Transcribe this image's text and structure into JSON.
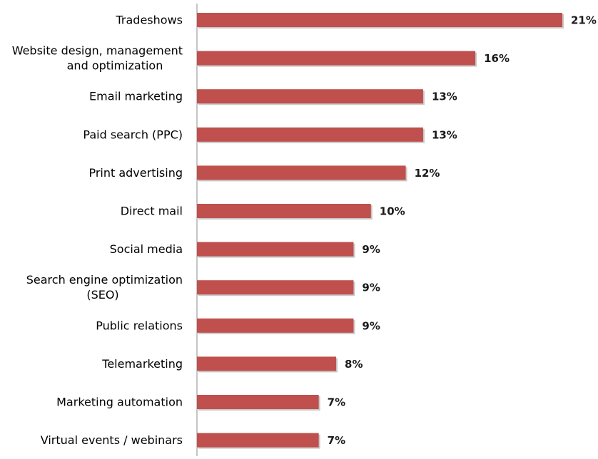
{
  "chart_data": {
    "type": "bar",
    "orientation": "horizontal",
    "categories": [
      [
        "Tradeshows"
      ],
      [
        "Website design, management",
        "and optimization"
      ],
      [
        "Email marketing"
      ],
      [
        "Paid search (PPC)"
      ],
      [
        "Print advertising"
      ],
      [
        "Direct mail"
      ],
      [
        "Social media"
      ],
      [
        "Search engine optimization",
        "(SEO)"
      ],
      [
        "Public relations"
      ],
      [
        "Telemarketing"
      ],
      [
        "Marketing automation"
      ],
      [
        "Virtual events / webinars"
      ]
    ],
    "values": [
      21,
      16,
      13,
      13,
      12,
      10,
      9,
      9,
      9,
      8,
      7,
      7
    ],
    "value_labels": [
      "21%",
      "16%",
      "13%",
      "13%",
      "12%",
      "10%",
      "9%",
      "9%",
      "9%",
      "8%",
      "7%",
      "7%"
    ],
    "title": "",
    "xlabel": "",
    "ylabel": "",
    "xlim": [
      0,
      21
    ],
    "grid": false,
    "legend": "none",
    "colors": {
      "bar": "#c0504d",
      "bar_shadow": "#9a9a9a",
      "axis": "#8c8c8c"
    }
  }
}
